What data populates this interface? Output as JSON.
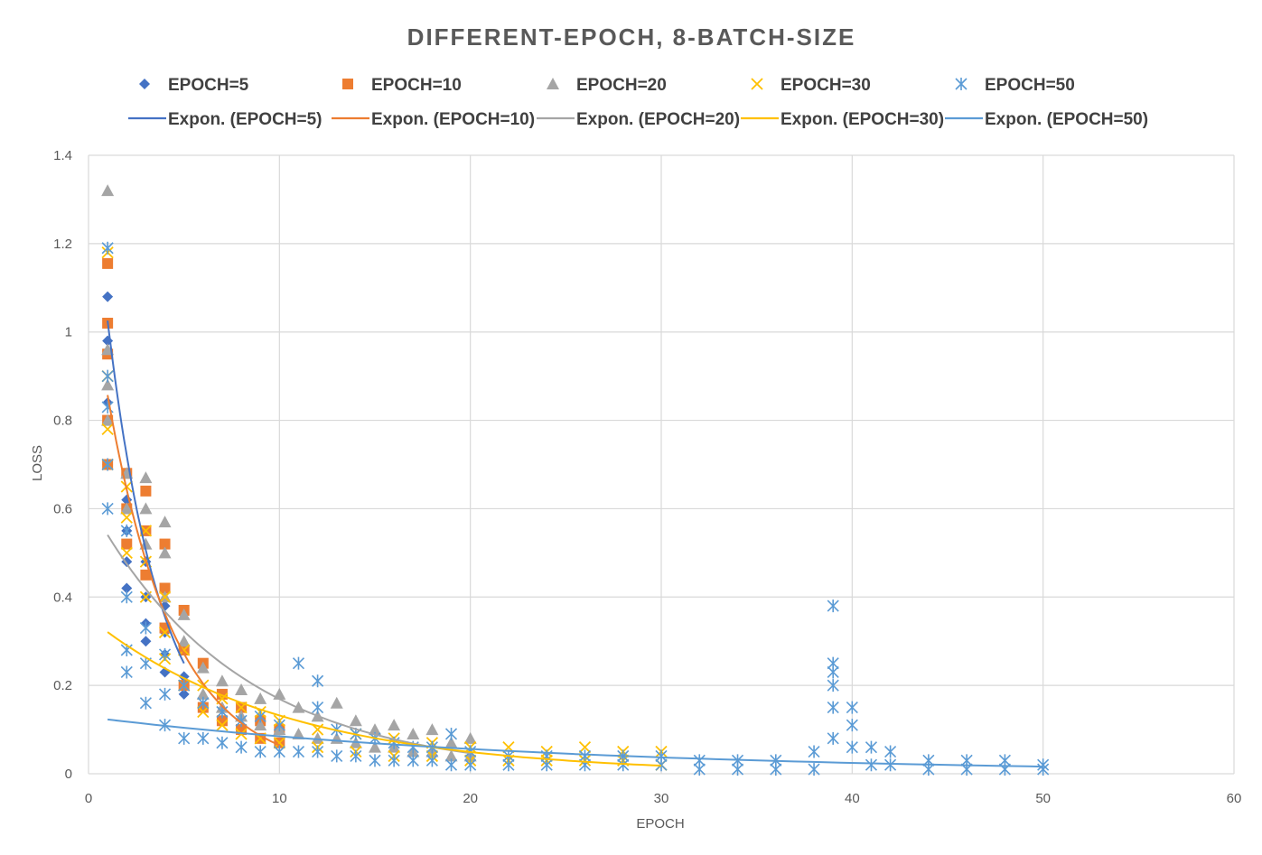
{
  "chart_data": {
    "type": "scatter",
    "title": "DIFFERENT-EPOCH, 8-BATCH-SIZE",
    "xlabel": "EPOCH",
    "ylabel": "LOSS",
    "xlim": [
      0,
      60
    ],
    "ylim": [
      0,
      1.4
    ],
    "x_ticks": [
      "0",
      "10",
      "20",
      "30",
      "40",
      "50",
      "60"
    ],
    "y_ticks": [
      "0",
      "0.2",
      "0.4",
      "0.6",
      "0.8",
      "1",
      "1.2",
      "1.4"
    ],
    "grid": true,
    "legend_position": "top",
    "series": [
      {
        "name": "EPOCH=5",
        "marker": "diamond",
        "color": "#4472C4",
        "x": [
          1,
          1,
          1,
          1,
          2,
          2,
          2,
          2,
          3,
          3,
          3,
          3,
          4,
          4,
          4,
          4,
          5,
          5,
          5
        ],
        "y": [
          1.08,
          0.98,
          0.84,
          0.7,
          0.62,
          0.55,
          0.48,
          0.42,
          0.48,
          0.4,
          0.34,
          0.3,
          0.38,
          0.32,
          0.27,
          0.23,
          0.28,
          0.22,
          0.18
        ]
      },
      {
        "name": "EPOCH=10",
        "marker": "square",
        "color": "#ED7D31",
        "x": [
          1,
          1,
          1,
          1,
          1,
          2,
          2,
          2,
          3,
          3,
          3,
          4,
          4,
          4,
          5,
          5,
          5,
          6,
          6,
          7,
          7,
          8,
          8,
          9,
          9,
          10,
          10
        ],
        "y": [
          1.155,
          1.02,
          0.95,
          0.8,
          0.7,
          0.68,
          0.6,
          0.52,
          0.64,
          0.55,
          0.45,
          0.52,
          0.42,
          0.33,
          0.37,
          0.28,
          0.2,
          0.25,
          0.15,
          0.18,
          0.12,
          0.15,
          0.1,
          0.12,
          0.08,
          0.1,
          0.07
        ]
      },
      {
        "name": "EPOCH=20",
        "marker": "triangle",
        "color": "#A5A5A5",
        "x": [
          1,
          1,
          1,
          1,
          2,
          2,
          3,
          3,
          3,
          4,
          4,
          4,
          5,
          5,
          6,
          6,
          7,
          7,
          8,
          8,
          9,
          9,
          10,
          10,
          11,
          11,
          12,
          12,
          13,
          13,
          14,
          14,
          15,
          15,
          16,
          16,
          17,
          17,
          18,
          18,
          19,
          19,
          20,
          20
        ],
        "y": [
          1.32,
          0.96,
          0.88,
          0.8,
          0.68,
          0.6,
          0.67,
          0.6,
          0.52,
          0.57,
          0.5,
          0.4,
          0.36,
          0.3,
          0.24,
          0.18,
          0.21,
          0.15,
          0.19,
          0.13,
          0.17,
          0.11,
          0.18,
          0.1,
          0.15,
          0.09,
          0.13,
          0.08,
          0.16,
          0.08,
          0.12,
          0.07,
          0.1,
          0.06,
          0.11,
          0.06,
          0.09,
          0.05,
          0.1,
          0.05,
          0.07,
          0.04,
          0.08,
          0.04
        ]
      },
      {
        "name": "EPOCH=30",
        "marker": "x",
        "color": "#FFC000",
        "x": [
          1,
          1,
          1,
          1,
          2,
          2,
          2,
          3,
          3,
          3,
          4,
          4,
          4,
          5,
          5,
          6,
          6,
          7,
          7,
          8,
          8,
          9,
          9,
          10,
          10,
          12,
          12,
          14,
          14,
          16,
          16,
          18,
          18,
          20,
          20,
          22,
          22,
          24,
          24,
          26,
          26,
          28,
          28,
          30,
          30
        ],
        "y": [
          1.18,
          0.9,
          0.78,
          0.7,
          0.65,
          0.58,
          0.5,
          0.55,
          0.48,
          0.4,
          0.4,
          0.32,
          0.26,
          0.28,
          0.2,
          0.2,
          0.14,
          0.17,
          0.11,
          0.15,
          0.09,
          0.14,
          0.08,
          0.12,
          0.07,
          0.1,
          0.06,
          0.09,
          0.05,
          0.08,
          0.04,
          0.07,
          0.04,
          0.06,
          0.03,
          0.06,
          0.03,
          0.05,
          0.03,
          0.06,
          0.03,
          0.05,
          0.03,
          0.05,
          0.02
        ]
      },
      {
        "name": "EPOCH=50",
        "marker": "asterisk",
        "color": "#5B9BD5",
        "x": [
          1,
          1,
          1,
          1,
          1,
          2,
          2,
          2,
          2,
          3,
          3,
          3,
          4,
          4,
          4,
          5,
          5,
          6,
          6,
          7,
          7,
          8,
          8,
          9,
          9,
          10,
          10,
          11,
          11,
          12,
          12,
          12,
          13,
          13,
          14,
          14,
          15,
          15,
          16,
          16,
          17,
          17,
          18,
          18,
          19,
          19,
          20,
          20,
          22,
          22,
          24,
          24,
          26,
          26,
          28,
          28,
          30,
          30,
          32,
          32,
          34,
          34,
          36,
          36,
          38,
          38,
          39,
          39,
          39,
          39,
          39,
          39,
          40,
          40,
          40,
          41,
          41,
          42,
          42,
          44,
          44,
          46,
          46,
          48,
          48,
          50,
          50
        ],
        "y": [
          1.19,
          0.9,
          0.83,
          0.7,
          0.6,
          0.55,
          0.4,
          0.28,
          0.23,
          0.33,
          0.25,
          0.16,
          0.27,
          0.18,
          0.11,
          0.2,
          0.08,
          0.16,
          0.08,
          0.14,
          0.07,
          0.12,
          0.06,
          0.13,
          0.05,
          0.11,
          0.05,
          0.25,
          0.05,
          0.21,
          0.15,
          0.05,
          0.1,
          0.04,
          0.09,
          0.04,
          0.08,
          0.03,
          0.07,
          0.03,
          0.06,
          0.03,
          0.06,
          0.03,
          0.09,
          0.02,
          0.05,
          0.02,
          0.04,
          0.02,
          0.04,
          0.02,
          0.04,
          0.02,
          0.04,
          0.02,
          0.04,
          0.02,
          0.03,
          0.01,
          0.03,
          0.01,
          0.03,
          0.01,
          0.05,
          0.01,
          0.38,
          0.25,
          0.23,
          0.2,
          0.15,
          0.08,
          0.15,
          0.11,
          0.06,
          0.06,
          0.02,
          0.05,
          0.02,
          0.03,
          0.01,
          0.03,
          0.01,
          0.03,
          0.01,
          0.02,
          0.01
        ]
      }
    ],
    "trendlines": [
      {
        "name": "Expon. (EPOCH=5)",
        "color": "#4472C4",
        "type": "exponential",
        "a": 1.46,
        "b": -0.353,
        "x_range": [
          1,
          5
        ]
      },
      {
        "name": "Expon. (EPOCH=10)",
        "color": "#ED7D31",
        "type": "exponential",
        "a": 1.142,
        "b": -0.287,
        "x_range": [
          1,
          10
        ]
      },
      {
        "name": "Expon. (EPOCH=20)",
        "color": "#A5A5A5",
        "type": "exponential",
        "a": 0.615,
        "b": -0.129,
        "x_range": [
          1,
          20
        ]
      },
      {
        "name": "Expon. (EPOCH=30)",
        "color": "#FFC000",
        "type": "exponential",
        "a": 0.354,
        "b": -0.0987,
        "x_range": [
          1,
          30
        ]
      },
      {
        "name": "Expon. (EPOCH=50)",
        "color": "#5B9BD5",
        "type": "exponential",
        "a": 0.128,
        "b": -0.0413,
        "x_range": [
          1,
          50
        ]
      }
    ]
  }
}
